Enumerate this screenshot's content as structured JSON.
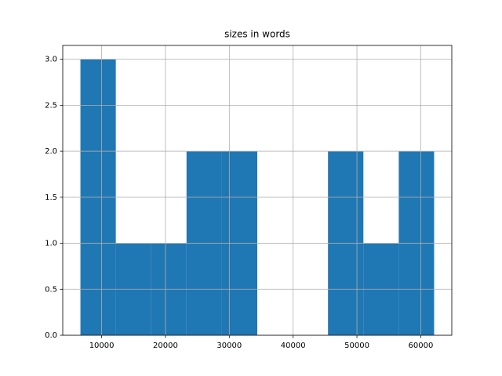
{
  "chart_data": {
    "type": "histogram",
    "title": "sizes in words",
    "bins": [
      6675,
      12217,
      17759,
      23301,
      28843,
      34385,
      39927,
      45469,
      51011,
      56553,
      62094
    ],
    "values": [
      3,
      1,
      1,
      2,
      2,
      0,
      0,
      2,
      1,
      2
    ],
    "color": "#1f77b4",
    "xlim": [
      3904,
      64865
    ],
    "xticks": [
      10000,
      20000,
      30000,
      40000,
      50000,
      60000
    ],
    "ylim": [
      0,
      3.15
    ],
    "yticks": [
      {
        "value": 0,
        "label": "0.0"
      },
      0.5,
      {
        "value": 1,
        "label": "1.0"
      },
      1.5,
      {
        "value": 2,
        "label": "2.0"
      },
      2.5,
      {
        "value": 3,
        "label": "3.0"
      }
    ],
    "grid": true
  }
}
